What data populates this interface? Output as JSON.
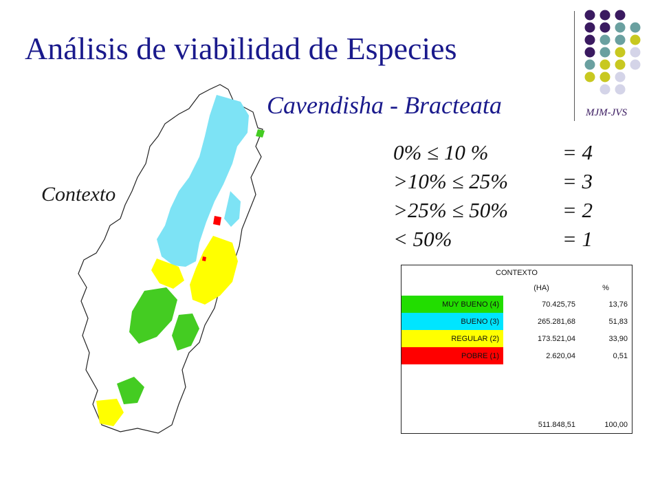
{
  "title": "Análisis de viabilidad de Especies",
  "subtitle": "Cavendisha - Bracteata",
  "map_label": "Contexto",
  "criteria": [
    {
      "range": "0%  ≤  10 %",
      "score": "= 4"
    },
    {
      "range": ">10%  ≤  25%",
      "score": "= 3"
    },
    {
      "range": ">25%  ≤  50%",
      "score": "= 2"
    },
    {
      "range": "< 50%",
      "score": "= 1"
    }
  ],
  "logo_text": "MJM-JVS",
  "colors": {
    "muy_bueno": "#22dd00",
    "bueno": "#00e5ff",
    "regular": "#ffff00",
    "pobre": "#ff0000",
    "title": "#1a1a8c",
    "logo_purple": "#3a1a60",
    "logo_teal": "#6aa0a0",
    "logo_olive": "#c8c820",
    "logo_lilac": "#d4d4e8"
  },
  "table": {
    "header": "CONTEXTO",
    "col_ha": "(HA)",
    "col_pct": "%",
    "rows": [
      {
        "label": "MUY BUENO (4)",
        "ha": "70.425,75",
        "pct": "13,76",
        "color": "#22dd00"
      },
      {
        "label": "BUENO (3)",
        "ha": "265.281,68",
        "pct": "51,83",
        "color": "#00e5ff"
      },
      {
        "label": "REGULAR (2)",
        "ha": "173.521,04",
        "pct": "33,90",
        "color": "#ffff00"
      },
      {
        "label": "POBRE (1)",
        "ha": "2.620,04",
        "pct": "0,51",
        "color": "#ff0000"
      }
    ],
    "total_ha": "511.848,51",
    "total_pct": "100,00"
  }
}
